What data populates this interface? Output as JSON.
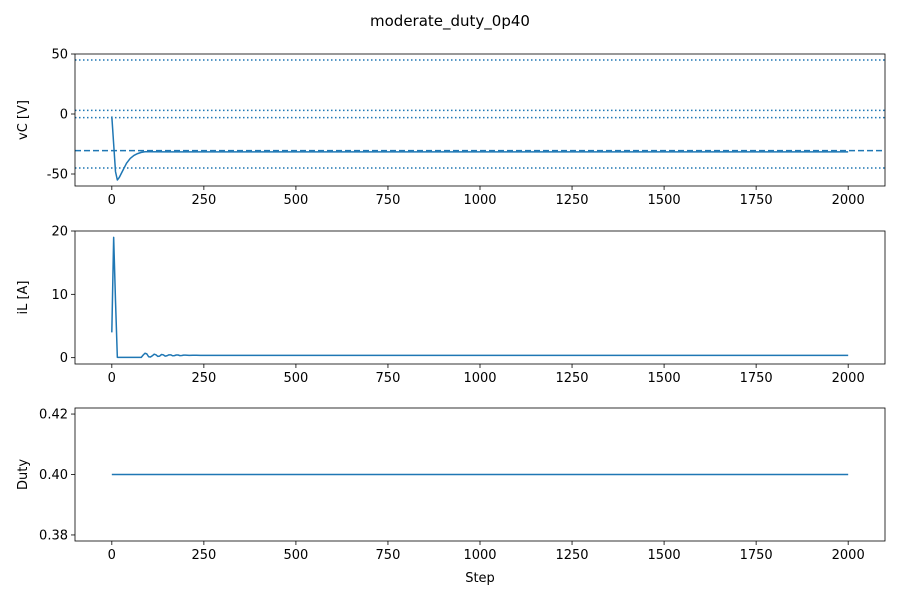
{
  "figure": {
    "title": "moderate_duty_0p40"
  },
  "colors": {
    "series": "#1f77b4",
    "frame": "#000000",
    "background": "#ffffff"
  },
  "chart_data": [
    {
      "id": "vc",
      "type": "line",
      "title": "",
      "xlabel": "",
      "ylabel": "vC [V]",
      "xlim": [
        -100,
        2100
      ],
      "ylim": [
        -60,
        50
      ],
      "xticks": [
        0,
        250,
        500,
        750,
        1000,
        1250,
        1500,
        1750,
        2000
      ],
      "yticks": [
        -50,
        0,
        50
      ],
      "grid": false,
      "series": [
        {
          "name": "",
          "x": [
            0,
            5,
            10,
            15,
            20,
            25,
            30,
            35,
            40,
            50,
            60,
            70,
            80,
            90,
            100,
            150,
            200,
            500,
            1000,
            1500,
            2000
          ],
          "y": [
            -2,
            -25,
            -48,
            -55,
            -53,
            -50,
            -47,
            -44,
            -41,
            -37,
            -34.5,
            -33,
            -32,
            -31.5,
            -31.5,
            -31.6,
            -31.6,
            -31.6,
            -31.6,
            -31.6,
            -31.6
          ]
        }
      ],
      "reference_lines": [
        {
          "y": 45,
          "style": "dotted"
        },
        {
          "y": 3,
          "style": "dotted"
        },
        {
          "y": -3,
          "style": "dotted"
        },
        {
          "y": -30.5,
          "style": "dashed"
        },
        {
          "y": -45,
          "style": "dotted"
        }
      ]
    },
    {
      "id": "il",
      "type": "line",
      "title": "",
      "xlabel": "",
      "ylabel": "iL [A]",
      "xlim": [
        -100,
        2100
      ],
      "ylim": [
        -1,
        20
      ],
      "xticks": [
        0,
        250,
        500,
        750,
        1000,
        1250,
        1500,
        1750,
        2000
      ],
      "yticks": [
        0,
        10,
        20
      ],
      "grid": false,
      "series": [
        {
          "name": "",
          "x": [
            0,
            5,
            10,
            15,
            20,
            30,
            40,
            50,
            60,
            70,
            80,
            85,
            90,
            95,
            100,
            105,
            110,
            115,
            120,
            125,
            130,
            135,
            140,
            145,
            150,
            155,
            160,
            165,
            170,
            175,
            180,
            185,
            190,
            195,
            200,
            210,
            220,
            230,
            240,
            250,
            300,
            500,
            1000,
            1500,
            2000
          ],
          "y": [
            4,
            19,
            9,
            0.05,
            0.05,
            0.05,
            0.05,
            0.05,
            0.05,
            0.05,
            0.05,
            0.4,
            0.7,
            0.6,
            0.15,
            0.1,
            0.3,
            0.55,
            0.45,
            0.2,
            0.25,
            0.5,
            0.45,
            0.25,
            0.3,
            0.45,
            0.45,
            0.3,
            0.32,
            0.42,
            0.42,
            0.32,
            0.34,
            0.4,
            0.4,
            0.36,
            0.38,
            0.38,
            0.37,
            0.37,
            0.37,
            0.37,
            0.37,
            0.37,
            0.37
          ]
        }
      ],
      "reference_lines": []
    },
    {
      "id": "duty",
      "type": "line",
      "title": "",
      "xlabel": "Step",
      "ylabel": "Duty",
      "xlim": [
        -100,
        2100
      ],
      "ylim": [
        0.378,
        0.422
      ],
      "xticks": [
        0,
        250,
        500,
        750,
        1000,
        1250,
        1500,
        1750,
        2000
      ],
      "yticks": [
        0.38,
        0.4,
        0.42
      ],
      "ytick_decimals": 2,
      "grid": false,
      "series": [
        {
          "name": "",
          "x": [
            0,
            2000
          ],
          "y": [
            0.4,
            0.4
          ]
        }
      ],
      "reference_lines": []
    }
  ]
}
